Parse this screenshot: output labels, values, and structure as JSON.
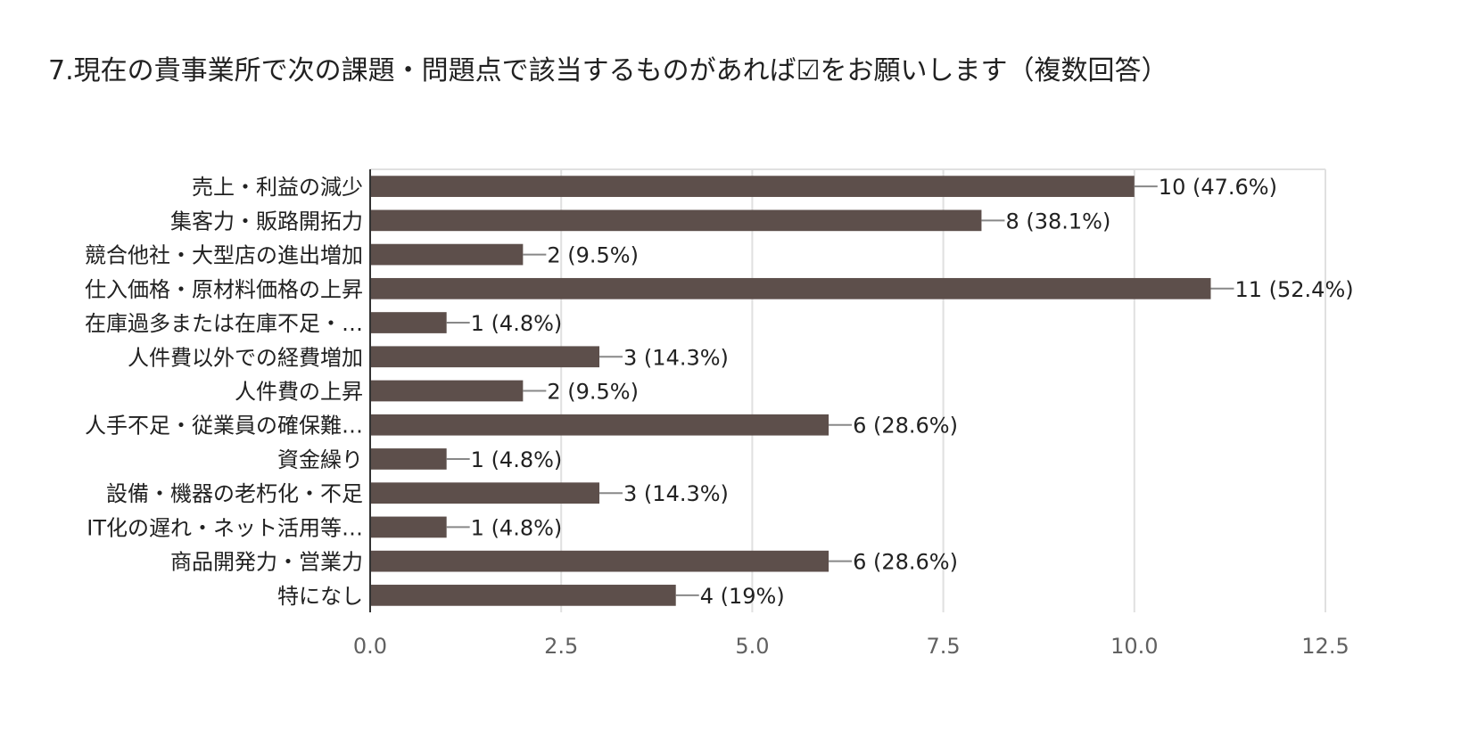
{
  "chart_data": {
    "type": "bar",
    "orientation": "horizontal",
    "title": "7.現在の貴事業所で次の課題・問題点で該当するものがあれば☑をお願いします（複数回答）",
    "categories": [
      "売上・利益の減少",
      "集客力・販路開拓力",
      "競合他社・大型店の進出増加",
      "仕入価格・原材料価格の上昇",
      "在庫過多または在庫不足・…",
      "人件費以外での経費増加",
      "人件費の上昇",
      "人手不足・従業員の確保難…",
      "資金繰り",
      "設備・機器の老朽化・不足",
      "IT化の遅れ・ネット活用等…",
      "商品開発力・営業力",
      "特になし"
    ],
    "values": [
      10,
      8,
      2,
      11,
      1,
      3,
      2,
      6,
      1,
      3,
      1,
      6,
      4
    ],
    "data_labels": [
      "10 (47.6%)",
      "8 (38.1%)",
      "2 (9.5%)",
      "11 (52.4%)",
      "1 (4.8%)",
      "3 (14.3%)",
      "2 (9.5%)",
      "6 (28.6%)",
      "1 (4.8%)",
      "3 (14.3%)",
      "1 (4.8%)",
      "6 (28.6%)",
      "4 (19%)"
    ],
    "xlim": [
      0,
      12.5
    ],
    "xticks": [
      "0.0",
      "2.5",
      "5.0",
      "7.5",
      "10.0",
      "12.5"
    ],
    "xtick_values": [
      0,
      2.5,
      5,
      7.5,
      10,
      12.5
    ],
    "grid": true,
    "bar_color": "#5d4f4b",
    "grid_color": "#e0e0e0",
    "xlabel": "",
    "ylabel": ""
  }
}
